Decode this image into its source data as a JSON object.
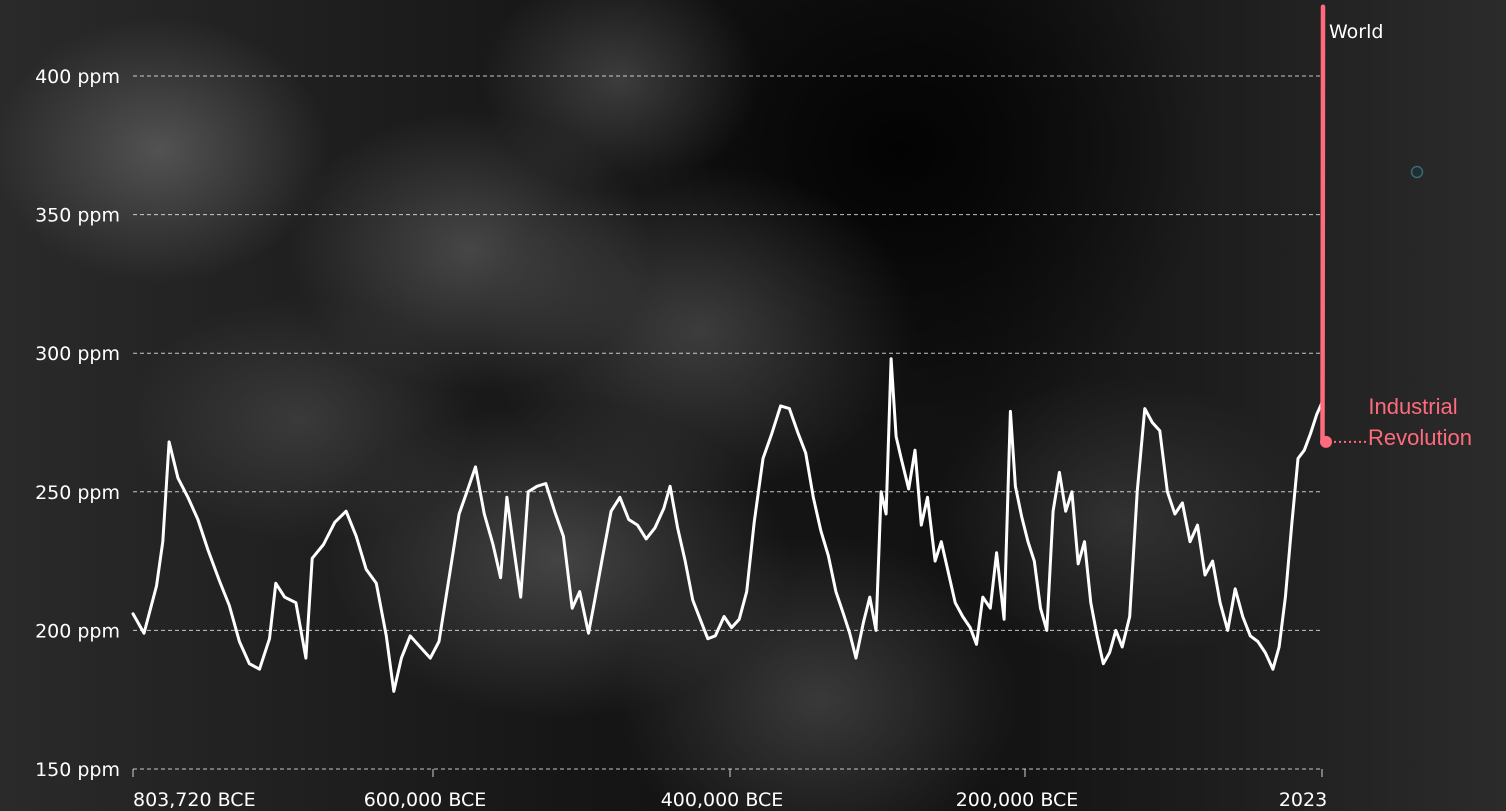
{
  "chart_data": {
    "type": "line",
    "series": [
      {
        "name": "World",
        "color": "#ffffff",
        "points": [
          [
            -803720,
            206
          ],
          [
            -795000,
            199
          ],
          [
            -785000,
            216
          ],
          [
            -780000,
            232
          ],
          [
            -775000,
            268
          ],
          [
            -768000,
            255
          ],
          [
            -760000,
            248
          ],
          [
            -752000,
            240
          ],
          [
            -744000,
            229
          ],
          [
            -735000,
            218
          ],
          [
            -727000,
            209
          ],
          [
            -719000,
            196
          ],
          [
            -711000,
            188
          ],
          [
            -703000,
            186
          ],
          [
            -695000,
            197
          ],
          [
            -690000,
            217
          ],
          [
            -683000,
            212
          ],
          [
            -674000,
            210
          ],
          [
            -666000,
            190
          ],
          [
            -661000,
            226
          ],
          [
            -652000,
            231
          ],
          [
            -643000,
            239
          ],
          [
            -634000,
            243
          ],
          [
            -626000,
            234
          ],
          [
            -618000,
            222
          ],
          [
            -610000,
            217
          ],
          [
            -602000,
            198
          ],
          [
            -596000,
            178
          ],
          [
            -590000,
            190
          ],
          [
            -583000,
            198
          ],
          [
            -575000,
            194
          ],
          [
            -567000,
            190
          ],
          [
            -560000,
            196
          ],
          [
            -552000,
            219
          ],
          [
            -544000,
            242
          ],
          [
            -537000,
            251
          ],
          [
            -531000,
            259
          ],
          [
            -524000,
            242
          ],
          [
            -517000,
            231
          ],
          [
            -511000,
            219
          ],
          [
            -506000,
            248
          ],
          [
            -500000,
            228
          ],
          [
            -495000,
            212
          ],
          [
            -489000,
            250
          ],
          [
            -482000,
            252
          ],
          [
            -475000,
            253
          ],
          [
            -468000,
            243
          ],
          [
            -461000,
            234
          ],
          [
            -454000,
            208
          ],
          [
            -448000,
            214
          ],
          [
            -441000,
            199
          ],
          [
            -436000,
            211
          ],
          [
            -430000,
            226
          ],
          [
            -423000,
            243
          ],
          [
            -416000,
            248
          ],
          [
            -409000,
            240
          ],
          [
            -402000,
            238
          ],
          [
            -395000,
            233
          ],
          [
            -388000,
            237
          ],
          [
            -381000,
            244
          ],
          [
            -376000,
            252
          ],
          [
            -370000,
            237
          ],
          [
            -364000,
            225
          ],
          [
            -358000,
            211
          ],
          [
            -352000,
            204
          ],
          [
            -346000,
            197
          ],
          [
            -340000,
            198
          ],
          [
            -333000,
            205
          ],
          [
            -327000,
            201
          ],
          [
            -321000,
            204
          ],
          [
            -315000,
            214
          ],
          [
            -309000,
            239
          ],
          [
            -302000,
            262
          ],
          [
            -295000,
            271
          ],
          [
            -288000,
            281
          ],
          [
            -281000,
            280
          ],
          [
            -274000,
            271
          ],
          [
            -268000,
            264
          ],
          [
            -262000,
            248
          ],
          [
            -256000,
            236
          ],
          [
            -250000,
            227
          ],
          [
            -244000,
            214
          ],
          [
            -238000,
            206
          ],
          [
            -233000,
            199
          ],
          [
            -228000,
            190
          ],
          [
            -222000,
            203
          ],
          [
            -217000,
            212
          ],
          [
            -212000,
            200
          ],
          [
            -208000,
            250
          ],
          [
            -204000,
            242
          ],
          [
            -200000,
            298
          ],
          [
            -196000,
            270
          ],
          [
            -192000,
            262
          ],
          [
            -186000,
            251
          ],
          [
            -181000,
            265
          ],
          [
            -176000,
            238
          ],
          [
            -171000,
            248
          ],
          [
            -165000,
            225
          ],
          [
            -160000,
            232
          ],
          [
            -154000,
            220
          ],
          [
            -149000,
            210
          ],
          [
            -143000,
            205
          ],
          [
            -137000,
            201
          ],
          [
            -132000,
            195
          ],
          [
            -127000,
            212
          ],
          [
            -121000,
            208
          ],
          [
            -116000,
            228
          ],
          [
            -110000,
            204
          ],
          [
            -105000,
            279
          ],
          [
            -101000,
            252
          ],
          [
            -96000,
            241
          ],
          [
            -91000,
            232
          ],
          [
            -86000,
            225
          ],
          [
            -81000,
            208
          ],
          [
            -76000,
            200
          ],
          [
            -71000,
            243
          ],
          [
            -66000,
            257
          ],
          [
            -61000,
            243
          ],
          [
            -56000,
            250
          ],
          [
            -51000,
            224
          ],
          [
            -46000,
            232
          ],
          [
            -41000,
            210
          ],
          [
            -36000,
            198
          ],
          [
            -31000,
            188
          ],
          [
            -26000,
            192
          ],
          [
            -21000,
            200
          ],
          [
            -16000,
            194
          ],
          [
            -10000,
            205
          ],
          [
            -4000,
            250
          ],
          [
            2000,
            280
          ],
          [
            8000,
            275
          ],
          [
            14000,
            272
          ],
          [
            20000,
            250
          ],
          [
            26000,
            242
          ],
          [
            32000,
            246
          ],
          [
            38000,
            232
          ],
          [
            44000,
            238
          ],
          [
            50000,
            220
          ],
          [
            56000,
            225
          ],
          [
            62000,
            210
          ],
          [
            68000,
            200
          ],
          [
            74000,
            215
          ],
          [
            80000,
            205
          ],
          [
            86000,
            198
          ],
          [
            92000,
            196
          ],
          [
            98000,
            192
          ],
          [
            104000,
            186
          ],
          [
            109000,
            194
          ],
          [
            114000,
            212
          ],
          [
            119000,
            238
          ],
          [
            124000,
            262
          ],
          [
            129000,
            265
          ],
          [
            134000,
            271
          ],
          [
            139000,
            278
          ],
          [
            143000,
            282
          ]
        ]
      },
      {
        "name": "",
        "color": "#ff6b7d",
        "points": [
          [
            143500,
            268
          ],
          [
            143700,
            320
          ],
          [
            143850,
            380
          ],
          [
            143930,
            425
          ]
        ]
      }
    ],
    "x_tick_labels": [
      "803,720 BCE",
      "600,000 BCE",
      "400,000 BCE",
      "200,000 BCE",
      "2023"
    ],
    "y_tick_labels": [
      "150 ppm",
      "200 ppm",
      "250 ppm",
      "300 ppm",
      "350 ppm",
      "400 ppm"
    ],
    "y_ticks": [
      150,
      200,
      250,
      300,
      350,
      400
    ],
    "ylim": [
      150,
      420
    ],
    "xlim": [
      -803720,
      143930
    ],
    "grid": "horizontal dashed",
    "series_label": "World",
    "annotation": {
      "text_line1": "Industrial",
      "text_line2": "Revolution",
      "value": 268,
      "color": "#ff6b7d"
    }
  }
}
